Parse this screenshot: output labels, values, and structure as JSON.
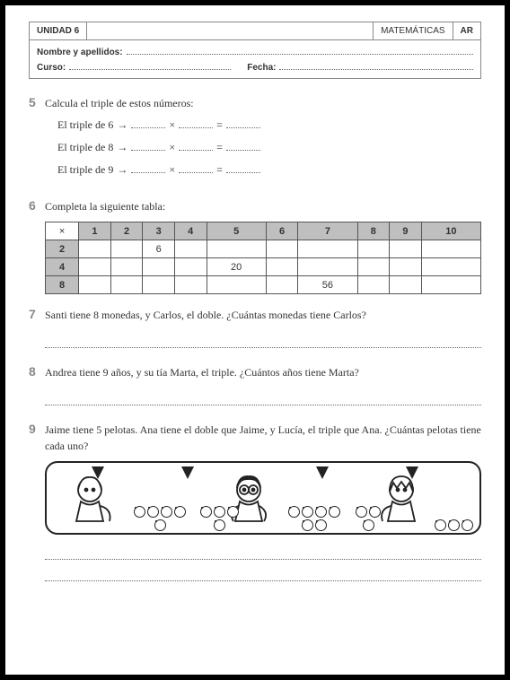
{
  "header": {
    "unit": "UNIDAD 6",
    "subject": "MATEMÁTICAS",
    "code": "AR",
    "name_label": "Nombre y apellidos:",
    "course_label": "Curso:",
    "date_label": "Fecha:"
  },
  "ex5": {
    "num": "5",
    "prompt": "Calcula el triple de estos números:",
    "lines": [
      {
        "text": "El triple de 6",
        "arrow": "→"
      },
      {
        "text": "El triple de 8",
        "arrow": "→"
      },
      {
        "text": "El triple de 9",
        "arrow": "→"
      }
    ],
    "times": "×",
    "eq": "="
  },
  "ex6": {
    "num": "6",
    "prompt": "Completa la siguiente tabla:",
    "table": {
      "corner": "×",
      "cols": [
        "1",
        "2",
        "3",
        "4",
        "5",
        "6",
        "7",
        "8",
        "9",
        "10"
      ],
      "rows": [
        {
          "head": "2",
          "cells": [
            "",
            "",
            "6",
            "",
            "",
            "",
            "",
            "",
            "",
            ""
          ]
        },
        {
          "head": "4",
          "cells": [
            "",
            "",
            "",
            "",
            "20",
            "",
            "",
            "",
            "",
            ""
          ]
        },
        {
          "head": "8",
          "cells": [
            "",
            "",
            "",
            "",
            "",
            "",
            "56",
            "",
            "",
            ""
          ]
        }
      ]
    }
  },
  "ex7": {
    "num": "7",
    "prompt": "Santi tiene 8 monedas, y Carlos, el doble. ¿Cuántas monedas tiene Carlos?"
  },
  "ex8": {
    "num": "8",
    "prompt": "Andrea tiene 9 años, y su tía Marta, el triple. ¿Cuántos años tiene Marta?"
  },
  "ex9": {
    "num": "9",
    "prompt": "Jaime tiene 5 pelotas. Ana tiene el doble que Jaime, y Lucía, el triple que Ana. ¿Cuántas pelotas tiene cada uno?"
  },
  "style": {
    "header_bg": "#bfbfbf",
    "border_color": "#555",
    "text_color": "#333",
    "num_color": "#888"
  }
}
